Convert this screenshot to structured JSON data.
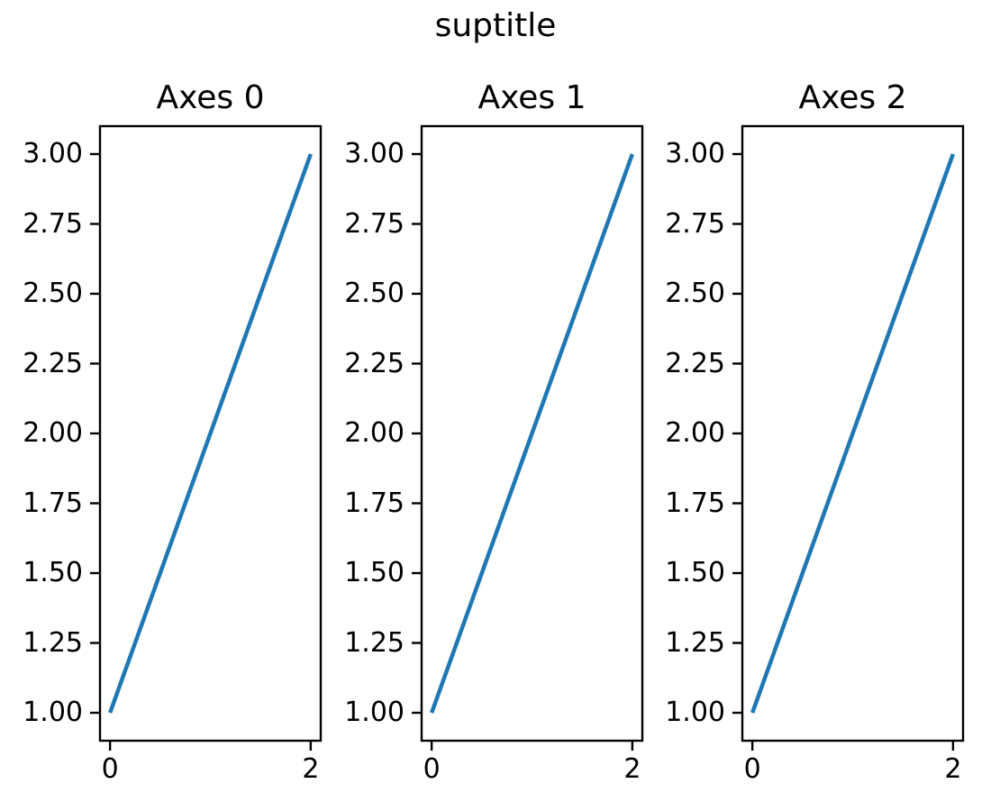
{
  "figure": {
    "suptitle": "suptitle",
    "background_color": "#ffffff",
    "text_color": "#000000",
    "spine_color": "#000000"
  },
  "chart_data": [
    {
      "type": "line",
      "title": "Axes 0",
      "xlabel": "",
      "ylabel": "",
      "xlim": [
        -0.1,
        2.1
      ],
      "ylim": [
        0.9,
        3.1
      ],
      "grid": false,
      "legend": null,
      "series": [
        {
          "name": "line-0",
          "color": "#1f77b4",
          "x": [
            0,
            2
          ],
          "y": [
            1,
            3
          ]
        }
      ],
      "xticks": [
        {
          "value": 0,
          "label": "0"
        },
        {
          "value": 2,
          "label": "2"
        }
      ],
      "yticks": [
        {
          "value": 1.0,
          "label": "1.00"
        },
        {
          "value": 1.25,
          "label": "1.25"
        },
        {
          "value": 1.5,
          "label": "1.50"
        },
        {
          "value": 1.75,
          "label": "1.75"
        },
        {
          "value": 2.0,
          "label": "2.00"
        },
        {
          "value": 2.25,
          "label": "2.25"
        },
        {
          "value": 2.5,
          "label": "2.50"
        },
        {
          "value": 2.75,
          "label": "2.75"
        },
        {
          "value": 3.0,
          "label": "3.00"
        }
      ]
    },
    {
      "type": "line",
      "title": "Axes 1",
      "xlabel": "",
      "ylabel": "",
      "xlim": [
        -0.1,
        2.1
      ],
      "ylim": [
        0.9,
        3.1
      ],
      "grid": false,
      "legend": null,
      "series": [
        {
          "name": "line-0",
          "color": "#1f77b4",
          "x": [
            0,
            2
          ],
          "y": [
            1,
            3
          ]
        }
      ],
      "xticks": [
        {
          "value": 0,
          "label": "0"
        },
        {
          "value": 2,
          "label": "2"
        }
      ],
      "yticks": [
        {
          "value": 1.0,
          "label": "1.00"
        },
        {
          "value": 1.25,
          "label": "1.25"
        },
        {
          "value": 1.5,
          "label": "1.50"
        },
        {
          "value": 1.75,
          "label": "1.75"
        },
        {
          "value": 2.0,
          "label": "2.00"
        },
        {
          "value": 2.25,
          "label": "2.25"
        },
        {
          "value": 2.5,
          "label": "2.50"
        },
        {
          "value": 2.75,
          "label": "2.75"
        },
        {
          "value": 3.0,
          "label": "3.00"
        }
      ]
    },
    {
      "type": "line",
      "title": "Axes 2",
      "xlabel": "",
      "ylabel": "",
      "xlim": [
        -0.1,
        2.1
      ],
      "ylim": [
        0.9,
        3.1
      ],
      "grid": false,
      "legend": null,
      "series": [
        {
          "name": "line-0",
          "color": "#1f77b4",
          "x": [
            0,
            2
          ],
          "y": [
            1,
            3
          ]
        }
      ],
      "xticks": [
        {
          "value": 0,
          "label": "0"
        },
        {
          "value": 2,
          "label": "2"
        }
      ],
      "yticks": [
        {
          "value": 1.0,
          "label": "1.00"
        },
        {
          "value": 1.25,
          "label": "1.25"
        },
        {
          "value": 1.5,
          "label": "1.50"
        },
        {
          "value": 1.75,
          "label": "1.75"
        },
        {
          "value": 2.0,
          "label": "2.00"
        },
        {
          "value": 2.25,
          "label": "2.25"
        },
        {
          "value": 2.5,
          "label": "2.50"
        },
        {
          "value": 2.75,
          "label": "2.75"
        },
        {
          "value": 3.0,
          "label": "3.00"
        }
      ]
    }
  ]
}
